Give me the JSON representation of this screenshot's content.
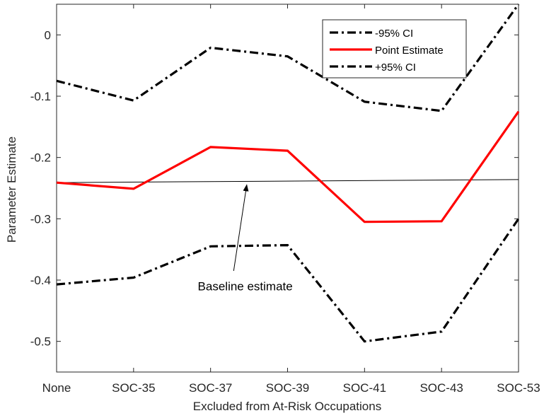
{
  "chart_data": {
    "type": "line",
    "title": "",
    "xlabel": "Excluded from At-Risk Occupations",
    "ylabel": "Parameter Estimate",
    "categories": [
      "None",
      "SOC-35",
      "SOC-37",
      "SOC-39",
      "SOC-41",
      "SOC-43",
      "SOC-53"
    ],
    "ylim": [
      -0.55,
      0.05
    ],
    "yticks": [
      0,
      -0.1,
      -0.2,
      -0.3,
      -0.4,
      -0.5
    ],
    "ytick_labels": [
      "0",
      "-0.1",
      "-0.2",
      "-0.3",
      "-0.4",
      "-0.5"
    ],
    "grid": false,
    "legend_position": "top-right",
    "series": [
      {
        "name": "-95% CI",
        "style": "dash-dot",
        "color": "#000000",
        "values": [
          -0.407,
          -0.396,
          -0.345,
          -0.343,
          -0.5,
          -0.484,
          -0.3
        ]
      },
      {
        "name": "Point Estimate",
        "style": "solid",
        "color": "#ff0000",
        "values": [
          -0.241,
          -0.251,
          -0.183,
          -0.189,
          -0.305,
          -0.304,
          -0.125
        ]
      },
      {
        "name": "+95% CI",
        "style": "dash-dot",
        "color": "#000000",
        "values": [
          -0.075,
          -0.107,
          -0.021,
          -0.035,
          -0.109,
          -0.124,
          0.05
        ]
      }
    ],
    "baseline": {
      "y_start": -0.241,
      "y_end": -0.236,
      "color": "#000000"
    },
    "annotation": {
      "text": "Baseline estimate",
      "x": 2.45,
      "y": -0.24
    }
  }
}
